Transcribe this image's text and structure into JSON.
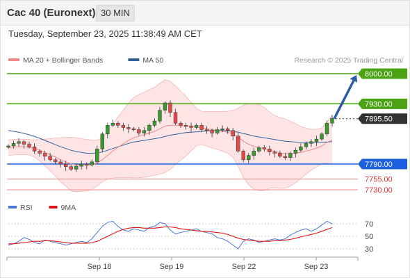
{
  "header": {
    "title": "Cac 40 (Euronext)",
    "interval": "30 MIN",
    "timestamp": "Tuesday, September 23, 2025 11:38:49 AM CET"
  },
  "chart_data": [
    {
      "type": "candlestick",
      "instrument": "Cac 40 (Euronext)",
      "legend": [
        {
          "label": "MA 20 + Bollinger Bands",
          "color": "#f08a8a"
        },
        {
          "label": "MA 50",
          "color": "#30609a"
        }
      ],
      "legend_position": "top-left",
      "watermark": "Research © 2025 Trading Central",
      "ylim": [
        7720,
        8010
      ],
      "x_ticks": [
        "Sep 18",
        "Sep 19",
        "Sep 22",
        "Sep 23"
      ],
      "levels": [
        {
          "value": 8000.0,
          "label": "8000.00",
          "kind": "resistance",
          "color": "#4aa312"
        },
        {
          "value": 7930.0,
          "label": "7930.00",
          "kind": "resistance",
          "color": "#4aa312"
        },
        {
          "value": 7895.5,
          "label": "7895.50",
          "kind": "last-price",
          "color": "#333333"
        },
        {
          "value": 7790.0,
          "label": "7790.00",
          "kind": "pivot",
          "color": "#1e5fe0"
        },
        {
          "value": 7755.0,
          "label": "7755.00",
          "kind": "support",
          "color": "#e04040"
        },
        {
          "value": 7730.0,
          "label": "7730.00",
          "kind": "support",
          "color": "#e04040"
        }
      ],
      "forecast_arrow": {
        "from": 7895.5,
        "to": 8000.0,
        "color": "#2a5da8"
      },
      "close_path": [
        7832,
        7838,
        7842,
        7836,
        7830,
        7820,
        7815,
        7808,
        7800,
        7795,
        7790,
        7784,
        7778,
        7785,
        7790,
        7788,
        7795,
        7825,
        7860,
        7880,
        7885,
        7880,
        7875,
        7872,
        7870,
        7862,
        7868,
        7880,
        7890,
        7915,
        7932,
        7910,
        7885,
        7880,
        7878,
        7875,
        7880,
        7870,
        7868,
        7862,
        7870,
        7872,
        7868,
        7855,
        7820,
        7800,
        7810,
        7820,
        7828,
        7825,
        7818,
        7815,
        7808,
        7805,
        7815,
        7822,
        7830,
        7838,
        7842,
        7848,
        7860,
        7885,
        7896
      ],
      "ma20": [
        7828,
        7829,
        7830,
        7830,
        7829,
        7826,
        7822,
        7817,
        7812,
        7806,
        7800,
        7795,
        7790,
        7788,
        7788,
        7787,
        7788,
        7792,
        7800,
        7810,
        7820,
        7829,
        7837,
        7845,
        7851,
        7855,
        7858,
        7862,
        7866,
        7872,
        7878,
        7880,
        7880,
        7879,
        7878,
        7877,
        7876,
        7874,
        7872,
        7870,
        7868,
        7866,
        7864,
        7860,
        7852,
        7843,
        7836,
        7831,
        7828,
        7825,
        7822,
        7819,
        7816,
        7814,
        7814,
        7815,
        7817,
        7820,
        7823,
        7827,
        7832,
        7840,
        7846
      ],
      "ma50": [
        7868,
        7866,
        7864,
        7861,
        7858,
        7854,
        7850,
        7845,
        7840,
        7835,
        7830,
        7826,
        7822,
        7819,
        7817,
        7815,
        7815,
        7816,
        7818,
        7822,
        7826,
        7830,
        7834,
        7838,
        7841,
        7843,
        7845,
        7847,
        7849,
        7851,
        7854,
        7857,
        7859,
        7861,
        7863,
        7864,
        7865,
        7866,
        7867,
        7868,
        7868,
        7868,
        7867,
        7866,
        7864,
        7861,
        7858,
        7855,
        7853,
        7851,
        7849,
        7847,
        7845,
        7843,
        7842,
        7841,
        7840,
        7840,
        7840,
        7840,
        7840,
        7841,
        7842
      ]
    },
    {
      "type": "line",
      "legend": [
        {
          "label": "RSI",
          "color": "#4a77d6"
        },
        {
          "label": "9MA",
          "color": "#e01515"
        }
      ],
      "ylim": [
        20,
        80
      ],
      "y_ticks": [
        "70",
        "50",
        "30"
      ],
      "rsi": [
        36,
        38,
        42,
        48,
        45,
        40,
        38,
        44,
        42,
        40,
        38,
        36,
        38,
        40,
        42,
        40,
        46,
        56,
        66,
        72,
        74,
        66,
        60,
        58,
        62,
        60,
        58,
        64,
        66,
        72,
        70,
        60,
        54,
        56,
        58,
        60,
        62,
        58,
        56,
        54,
        48,
        46,
        42,
        36,
        30,
        42,
        46,
        44,
        40,
        42,
        44,
        46,
        44,
        46,
        52,
        56,
        60,
        62,
        58,
        62,
        68,
        74,
        70
      ],
      "rsi_ma9": [
        38,
        38,
        39,
        40,
        41,
        42,
        42,
        43,
        43,
        42,
        41,
        40,
        39,
        39,
        39,
        39,
        40,
        42,
        46,
        50,
        54,
        58,
        61,
        63,
        64,
        64,
        63,
        63,
        63,
        64,
        65,
        65,
        64,
        62,
        61,
        60,
        59,
        58,
        58,
        57,
        56,
        55,
        53,
        50,
        47,
        45,
        44,
        43,
        42,
        42,
        42,
        43,
        43,
        44,
        45,
        47,
        49,
        51,
        53,
        55,
        58,
        61,
        64
      ]
    }
  ]
}
